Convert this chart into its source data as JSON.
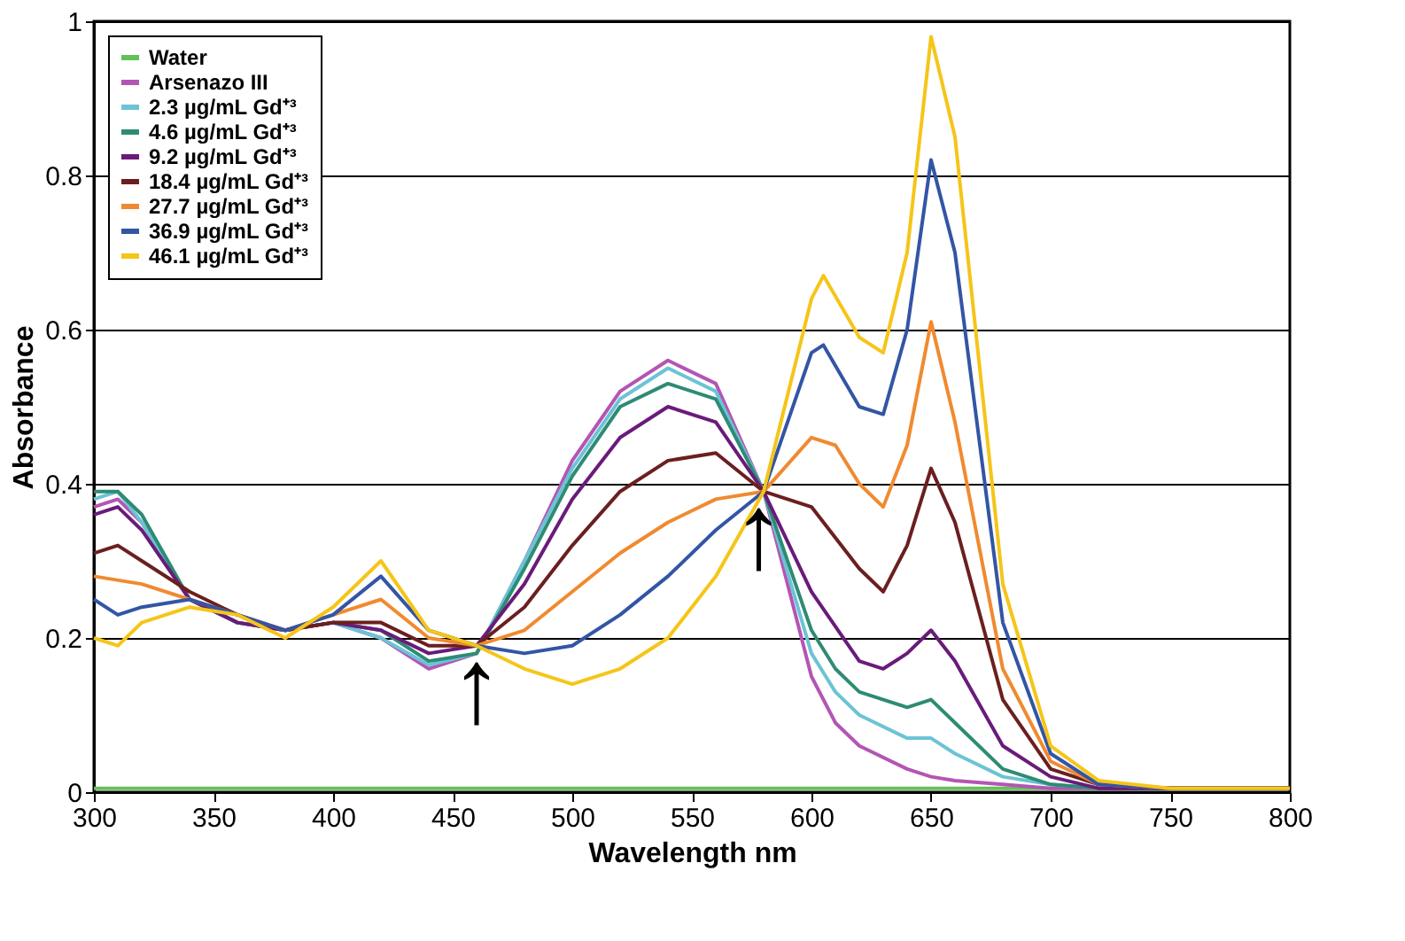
{
  "chart_data": {
    "type": "line",
    "xlabel": "Wavelength nm",
    "ylabel": "Absorbance",
    "xlim": [
      300,
      800
    ],
    "ylim": [
      0,
      1
    ],
    "xticks": [
      300,
      350,
      400,
      450,
      500,
      550,
      600,
      650,
      700,
      750,
      800
    ],
    "yticks": [
      0,
      0.2,
      0.4,
      0.6,
      0.8,
      1
    ],
    "grid": "y",
    "legend": "top left",
    "line_style": "solid",
    "marker": "none",
    "series": [
      {
        "name": "Water",
        "color": "#66c05a",
        "x": [
          300,
          400,
          500,
          600,
          650,
          700,
          800
        ],
        "values": [
          0.005,
          0.005,
          0.005,
          0.005,
          0.005,
          0.005,
          0.005
        ]
      },
      {
        "name": "Arsenazo III",
        "color": "#b455b4",
        "x": [
          300,
          310,
          320,
          340,
          360,
          380,
          400,
          420,
          440,
          460,
          480,
          500,
          520,
          540,
          560,
          580,
          600,
          610,
          620,
          640,
          650,
          660,
          680,
          700,
          720,
          750,
          800
        ],
        "values": [
          0.37,
          0.38,
          0.35,
          0.25,
          0.22,
          0.21,
          0.22,
          0.2,
          0.16,
          0.18,
          0.3,
          0.43,
          0.52,
          0.56,
          0.53,
          0.39,
          0.15,
          0.09,
          0.06,
          0.03,
          0.02,
          0.015,
          0.01,
          0.005,
          0.005,
          0.005,
          0.005
        ]
      },
      {
        "name": "2.3 µg/mL Gd⁺³",
        "color": "#6cc3d5",
        "x": [
          300,
          310,
          320,
          340,
          360,
          380,
          400,
          420,
          440,
          460,
          480,
          500,
          520,
          540,
          560,
          580,
          600,
          610,
          620,
          640,
          650,
          660,
          680,
          700,
          720
        ],
        "values": [
          0.38,
          0.39,
          0.35,
          0.25,
          0.22,
          0.21,
          0.22,
          0.2,
          0.165,
          0.18,
          0.3,
          0.42,
          0.51,
          0.55,
          0.52,
          0.39,
          0.18,
          0.13,
          0.1,
          0.07,
          0.07,
          0.05,
          0.02,
          0.01,
          0.005
        ]
      },
      {
        "name": "4.6 µg/mL Gd⁺³",
        "color": "#2e8b74",
        "x": [
          300,
          310,
          320,
          340,
          360,
          380,
          400,
          420,
          440,
          460,
          480,
          500,
          520,
          540,
          560,
          580,
          600,
          610,
          620,
          640,
          650,
          660,
          680,
          700,
          720,
          750,
          800
        ],
        "values": [
          0.39,
          0.39,
          0.36,
          0.25,
          0.22,
          0.21,
          0.22,
          0.21,
          0.17,
          0.18,
          0.29,
          0.41,
          0.5,
          0.53,
          0.51,
          0.39,
          0.21,
          0.16,
          0.13,
          0.11,
          0.12,
          0.09,
          0.03,
          0.01,
          0.005,
          0.005,
          0.005
        ]
      },
      {
        "name": "9.2 µg/mL Gd⁺³",
        "color": "#6a1b7a",
        "x": [
          300,
          310,
          320,
          340,
          360,
          380,
          400,
          420,
          440,
          460,
          480,
          500,
          520,
          540,
          560,
          580,
          600,
          620,
          630,
          640,
          650,
          660,
          680,
          700,
          720,
          750,
          800
        ],
        "values": [
          0.36,
          0.37,
          0.34,
          0.25,
          0.22,
          0.21,
          0.22,
          0.21,
          0.18,
          0.19,
          0.27,
          0.38,
          0.46,
          0.5,
          0.48,
          0.39,
          0.26,
          0.17,
          0.16,
          0.18,
          0.21,
          0.17,
          0.06,
          0.02,
          0.005,
          0.005,
          0.005
        ]
      },
      {
        "name": "18.4 µg/mL Gd⁺³",
        "color": "#6b1f1f",
        "x": [
          300,
          310,
          320,
          340,
          360,
          380,
          400,
          420,
          440,
          460,
          480,
          500,
          520,
          540,
          560,
          580,
          600,
          620,
          630,
          640,
          650,
          660,
          680,
          700,
          720,
          750,
          800
        ],
        "values": [
          0.31,
          0.32,
          0.3,
          0.26,
          0.23,
          0.21,
          0.22,
          0.22,
          0.19,
          0.19,
          0.24,
          0.32,
          0.39,
          0.43,
          0.44,
          0.39,
          0.37,
          0.29,
          0.26,
          0.32,
          0.42,
          0.35,
          0.12,
          0.03,
          0.01,
          0.005,
          0.005
        ]
      },
      {
        "name": "27.7 µg/mL Gd⁺³",
        "color": "#f08a30",
        "x": [
          300,
          320,
          340,
          360,
          380,
          400,
          420,
          440,
          460,
          480,
          500,
          520,
          540,
          560,
          580,
          600,
          610,
          620,
          630,
          640,
          650,
          660,
          680,
          700,
          720,
          750,
          800
        ],
        "values": [
          0.28,
          0.27,
          0.25,
          0.23,
          0.21,
          0.23,
          0.25,
          0.2,
          0.19,
          0.21,
          0.26,
          0.31,
          0.35,
          0.38,
          0.39,
          0.46,
          0.45,
          0.4,
          0.37,
          0.45,
          0.61,
          0.48,
          0.16,
          0.04,
          0.01,
          0.005,
          0.005
        ]
      },
      {
        "name": "36.9 µg/mL Gd⁺³",
        "color": "#3355a5",
        "x": [
          300,
          310,
          320,
          340,
          360,
          380,
          400,
          420,
          440,
          460,
          480,
          500,
          520,
          540,
          560,
          580,
          600,
          605,
          620,
          630,
          640,
          650,
          660,
          680,
          700,
          720,
          750,
          800
        ],
        "values": [
          0.25,
          0.23,
          0.24,
          0.25,
          0.23,
          0.21,
          0.23,
          0.28,
          0.21,
          0.19,
          0.18,
          0.19,
          0.23,
          0.28,
          0.34,
          0.39,
          0.57,
          0.58,
          0.5,
          0.49,
          0.6,
          0.82,
          0.7,
          0.22,
          0.05,
          0.01,
          0.005,
          0.005
        ]
      },
      {
        "name": "46.1 µg/mL Gd⁺³",
        "color": "#f5c518",
        "x": [
          300,
          310,
          320,
          340,
          360,
          380,
          400,
          420,
          440,
          460,
          480,
          500,
          520,
          540,
          560,
          580,
          600,
          605,
          620,
          630,
          640,
          650,
          660,
          680,
          700,
          720,
          750,
          800
        ],
        "values": [
          0.2,
          0.19,
          0.22,
          0.24,
          0.23,
          0.2,
          0.24,
          0.3,
          0.21,
          0.19,
          0.16,
          0.14,
          0.16,
          0.2,
          0.28,
          0.39,
          0.64,
          0.67,
          0.59,
          0.57,
          0.7,
          0.98,
          0.85,
          0.27,
          0.06,
          0.015,
          0.005,
          0.005
        ]
      }
    ],
    "annotations": [
      {
        "text": "↑",
        "x": 460,
        "y": 0.19
      },
      {
        "text": "↑",
        "x": 578,
        "y": 0.39
      }
    ]
  }
}
